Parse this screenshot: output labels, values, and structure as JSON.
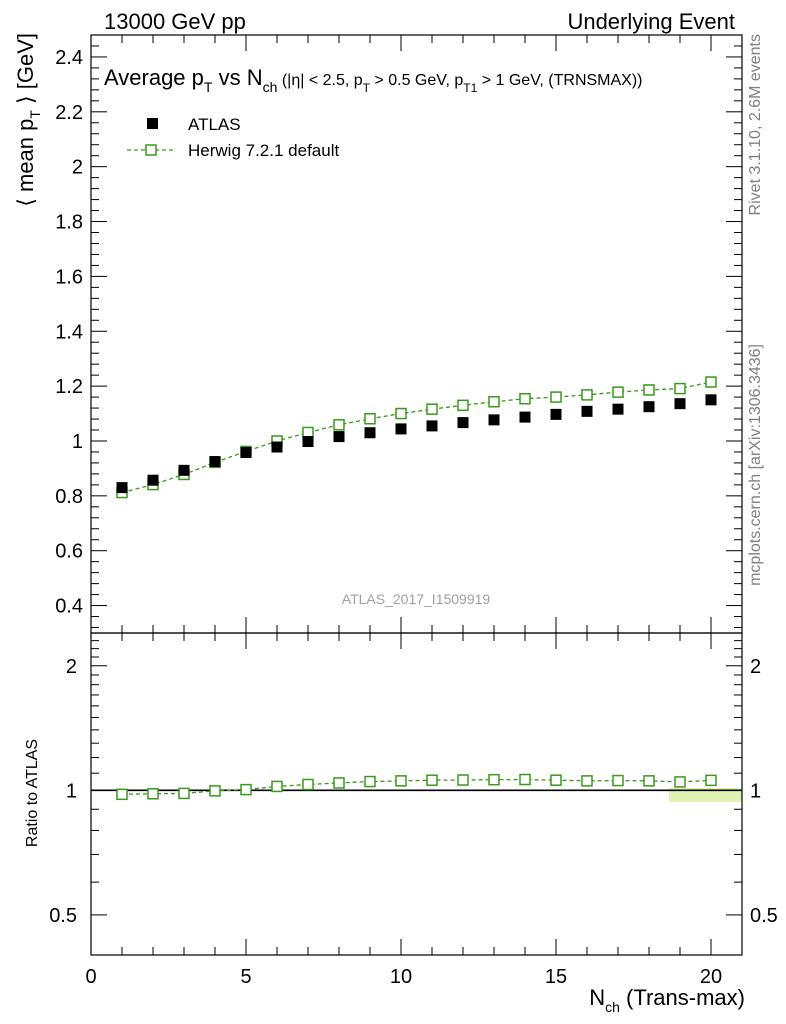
{
  "header": {
    "energy": "13000 GeV pp",
    "process": "Underlying Event"
  },
  "side_text": {
    "rivet": "Rivet 3.1.10,  2.6M events",
    "mcplots": "mcplots.cern.ch [arXiv:1306.3436]"
  },
  "watermark": "ATLAS_2017_I1509919",
  "colors": {
    "data": "#000000",
    "mc": "#3a9a1a",
    "band": "#d8f0a0",
    "axis": "#000000",
    "side_text": "#808080"
  },
  "chart_data": [
    {
      "type": "scatter",
      "panel": "main",
      "title": "Average p_T vs N_ch (|η| < 2.5, p_T > 0.5 GeV, p_T1 > 1 GeV, (TRNSMAX))",
      "title_parts": {
        "t1": "Average p",
        "t1_sub": "T",
        "t2": " vs N",
        "t2_sub": "ch",
        "t3": " (|η| < 2.5, p",
        "t3_sub": "T",
        "t4": " > 0.5 GeV, p",
        "t4_sub": "T1",
        "t5": " > 1 GeV, (TRNSMAX))"
      },
      "ylabel": "⟨ mean p_T ⟩ [GeV]",
      "ylabel_parts": {
        "a": "⟨ mean p",
        "a_sub": "T",
        "b": " ⟩ [GeV]"
      },
      "ylim": [
        0.3,
        2.48
      ],
      "xlim": [
        0,
        21
      ],
      "yticks": [
        0.4,
        0.6,
        0.8,
        1,
        1.2,
        1.4,
        1.6,
        1.8,
        2,
        2.2,
        2.4
      ],
      "ytick_labels": [
        "0.4",
        "0.6",
        "0.8",
        "1",
        "1.2",
        "1.4",
        "1.6",
        "1.8",
        "2",
        "2.2",
        "2.4"
      ],
      "legend_position": "top-left",
      "x": [
        1,
        2,
        3,
        4,
        5,
        6,
        7,
        8,
        9,
        10,
        11,
        12,
        13,
        14,
        15,
        16,
        17,
        18,
        19,
        20
      ],
      "series": [
        {
          "name": "ATLAS",
          "marker": "filled-square",
          "values": [
            0.83,
            0.857,
            0.893,
            0.925,
            0.958,
            0.978,
            0.998,
            1.016,
            1.03,
            1.044,
            1.055,
            1.067,
            1.077,
            1.087,
            1.097,
            1.108,
            1.116,
            1.125,
            1.136,
            1.15
          ]
        },
        {
          "name": "Herwig 7.2.1 default",
          "marker": "open-square-dashed-line",
          "values": [
            0.812,
            0.841,
            0.878,
            0.922,
            0.962,
            1.0,
            1.031,
            1.059,
            1.081,
            1.1,
            1.116,
            1.13,
            1.143,
            1.154,
            1.16,
            1.168,
            1.178,
            1.186,
            1.191,
            1.215
          ]
        }
      ]
    },
    {
      "type": "scatter",
      "panel": "ratio",
      "ylabel": "Ratio to ATLAS",
      "xlabel": "N_ch (Trans-max)",
      "xlabel_parts": {
        "a": "N",
        "a_sub": "ch",
        "b": " (Trans-max)"
      },
      "scale": "log",
      "ylim": [
        0.4,
        2.4
      ],
      "xlim": [
        0,
        21
      ],
      "yticks": [
        0.5,
        1,
        2
      ],
      "ytick_labels": [
        "0.5",
        "1",
        "2"
      ],
      "xticks": [
        0,
        5,
        10,
        15,
        20
      ],
      "xtick_labels": [
        "0",
        "5",
        "10",
        "15",
        "20"
      ],
      "x": [
        1,
        2,
        3,
        4,
        5,
        6,
        7,
        8,
        9,
        10,
        11,
        12,
        13,
        14,
        15,
        16,
        17,
        18,
        19,
        20
      ],
      "series": [
        {
          "name": "Herwig 7.2.1 default",
          "values": [
            0.978,
            0.981,
            0.983,
            0.997,
            1.004,
            1.022,
            1.033,
            1.042,
            1.05,
            1.054,
            1.058,
            1.059,
            1.061,
            1.062,
            1.058,
            1.054,
            1.056,
            1.054,
            1.048,
            1.057
          ]
        }
      ]
    }
  ]
}
